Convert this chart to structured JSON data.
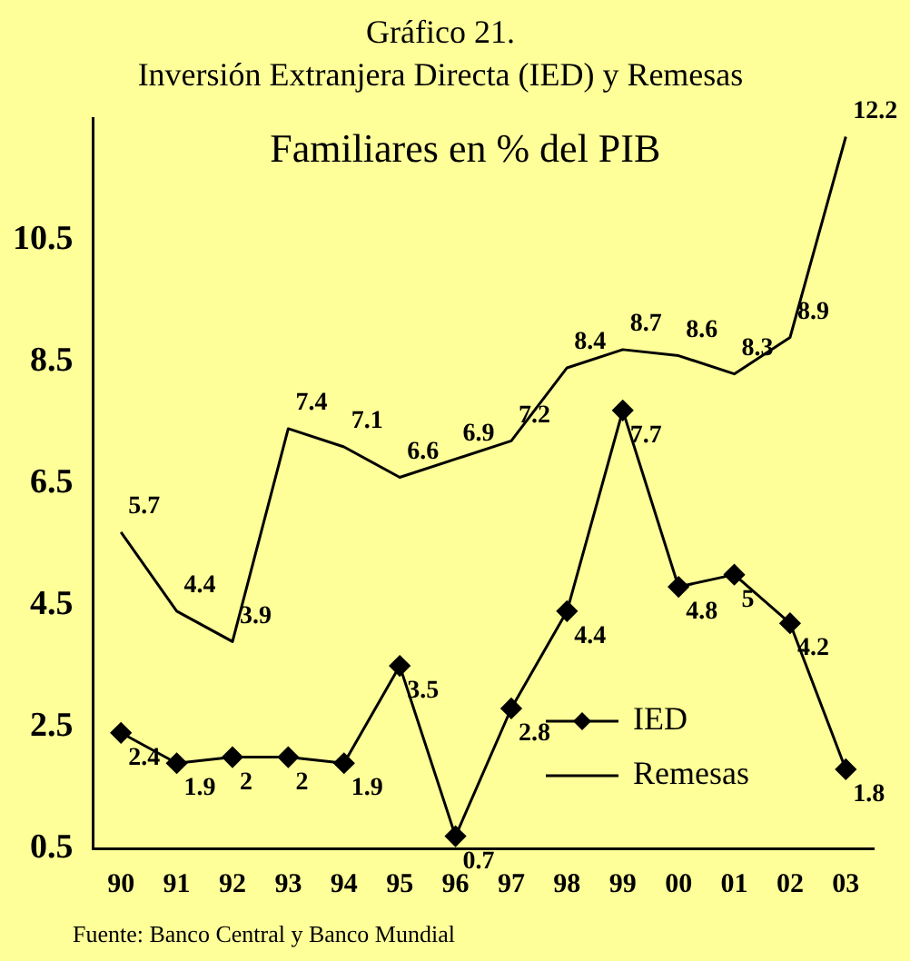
{
  "chart_data": {
    "type": "line",
    "title": "Gráfico 21.",
    "subtitle": "Inversión Extranjera Directa (IED) y Remesas",
    "annotations": [
      "Familiares en % del PIB",
      "Fuente: Banco Central y Banco Mundial"
    ],
    "categories": [
      "90",
      "91",
      "92",
      "93",
      "94",
      "95",
      "96",
      "97",
      "98",
      "99",
      "00",
      "01",
      "02",
      "03"
    ],
    "series": [
      {
        "name": "IED",
        "color": "#000000",
        "marker": "diamond",
        "values": [
          2.4,
          1.9,
          2,
          2,
          1.9,
          3.5,
          0.7,
          2.8,
          4.4,
          7.7,
          4.8,
          5,
          4.2,
          1.8
        ]
      },
      {
        "name": "Remesas",
        "color": "#000000",
        "marker": "none",
        "values": [
          5.7,
          4.4,
          3.9,
          7.4,
          7.1,
          6.6,
          6.9,
          7.2,
          8.4,
          8.7,
          8.6,
          8.3,
          8.9,
          12.2
        ]
      }
    ],
    "ylim": [
      0.5,
      12.5
    ],
    "yticks": [
      0.5,
      2.5,
      4.5,
      6.5,
      8.5,
      10.5
    ],
    "grid": false,
    "legend": "bottom right",
    "data_labels": true
  }
}
